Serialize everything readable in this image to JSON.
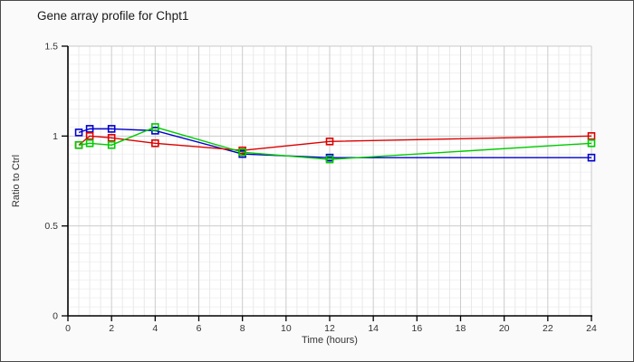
{
  "window": {
    "title": "Gene array profile for Chpt1"
  },
  "chart_data": {
    "type": "line",
    "title": "Gene array profile for Chpt1",
    "xlabel": "Time (hours)",
    "ylabel": "Ratio to Ctrl",
    "xlim": [
      0,
      24
    ],
    "ylim": [
      0,
      1.5
    ],
    "x": [
      0.5,
      1,
      2,
      4,
      8,
      12,
      24
    ],
    "series": [
      {
        "name": "blue-series",
        "color": "#0000cc",
        "values": [
          1.02,
          1.04,
          1.04,
          1.03,
          0.9,
          0.88,
          0.88
        ]
      },
      {
        "name": "red-series",
        "color": "#dd0000",
        "values": [
          0.95,
          1.0,
          0.99,
          0.96,
          0.92,
          0.97,
          1.0
        ]
      },
      {
        "name": "green-series",
        "color": "#00cc00",
        "values": [
          0.95,
          0.96,
          0.95,
          1.05,
          0.91,
          0.87,
          0.96
        ]
      }
    ],
    "x_major_ticks": [
      0,
      2,
      4,
      6,
      8,
      10,
      12,
      14,
      16,
      18,
      20,
      22,
      24
    ],
    "x_minor_step": 0.5,
    "y_ticks": [
      "0",
      "0.5",
      "1",
      "1.5"
    ],
    "y_tick_values": [
      0,
      0.5,
      1,
      1.5
    ],
    "y_minor_step": 0.05,
    "grid": true,
    "legend": "none",
    "marker": "open-square",
    "colors": {
      "plot_background": "#ffffff",
      "outer_background": "#fafafa",
      "major_grid": "#cccccc",
      "minor_grid_v": "#e9e9e9",
      "minor_grid_h": "#f1f1f1",
      "axis": "#000000",
      "frame": "#c8c8c8",
      "tick_text": "#333333"
    }
  }
}
